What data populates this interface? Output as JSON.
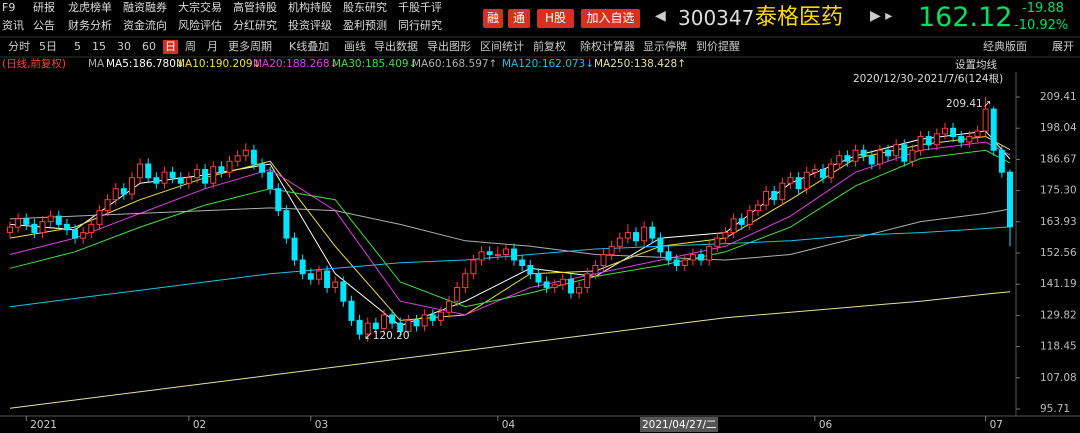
{
  "nav": {
    "row1": [
      "F9",
      "研报",
      "龙虎榜单",
      "融资融券",
      "大宗交易",
      "高管持股",
      "机构持股",
      "股东研究",
      "千股千评"
    ],
    "row2": [
      "资讯",
      "公告",
      "财务分析",
      "资金流向",
      "风险评估",
      "分红研究",
      "投资评级",
      "盈利预测",
      "同行研究"
    ]
  },
  "badges": [
    "融",
    "通",
    "H股",
    "加入自选"
  ],
  "quote": {
    "code": "300347",
    "name": "泰格医药",
    "price": "162.12",
    "change": "-19.88",
    "change_pct": "-10.92%"
  },
  "toolbar": [
    "分时",
    "5日",
    "5",
    "15",
    "30",
    "60",
    "日",
    "周",
    "月",
    "更多周期",
    "K线叠加",
    "画线",
    "导出数据",
    "导出图形",
    "区间统计",
    "前复权",
    "除权计算器",
    "显示停牌",
    "到价提醒"
  ],
  "toolbar_right": [
    "经典版面",
    "展开"
  ],
  "chart_data": {
    "type": "candlestick",
    "subtitle": "(日线,前复权)",
    "ma_label": "MA",
    "settings_label": "设置均线",
    "range_label": "2020/12/30-2021/7/6(124根)",
    "crosshair_label": "2021/04/27/二",
    "up_color": "#ff3c3c",
    "down_color": "#00e5ff",
    "open": [
      160,
      162,
      165,
      163,
      160,
      164,
      166,
      163,
      161,
      158,
      160,
      163,
      168,
      172,
      176,
      174,
      180,
      185,
      180,
      178,
      182,
      180,
      178,
      180,
      183,
      178,
      184,
      182,
      186,
      188,
      190,
      185,
      182,
      176,
      168,
      158,
      150,
      145,
      143,
      146,
      140,
      142,
      135,
      128,
      123,
      127,
      125,
      130,
      127,
      124,
      128,
      126,
      130,
      128,
      131,
      135,
      140,
      145,
      150,
      153,
      152,
      152,
      154,
      150,
      148,
      145,
      142,
      140,
      141,
      143,
      138,
      140,
      145,
      148,
      152,
      155,
      158,
      160,
      157,
      162,
      158,
      153,
      150,
      148,
      150,
      152,
      150,
      155,
      158,
      160,
      165,
      163,
      168,
      170,
      175,
      172,
      178,
      180,
      176,
      182,
      183,
      180,
      185,
      188,
      186,
      190,
      188,
      185,
      190,
      188,
      192,
      186,
      190,
      195,
      192,
      196,
      198,
      195,
      193,
      195,
      197,
      205,
      190,
      182
    ],
    "high": [
      164,
      167,
      167,
      165,
      166,
      168,
      168,
      165,
      163,
      162,
      165,
      170,
      174,
      178,
      178,
      182,
      187,
      187,
      182,
      184,
      184,
      182,
      182,
      185,
      185,
      186,
      186,
      188,
      190,
      192.5,
      192,
      187,
      184,
      178,
      170,
      160,
      152,
      147,
      148,
      148,
      144,
      144,
      137,
      130,
      129,
      129,
      132,
      132,
      129,
      130,
      130,
      132,
      132,
      133,
      137,
      142,
      147,
      152,
      155,
      155,
      155,
      156,
      156,
      152,
      150,
      147,
      144,
      143,
      145,
      145,
      142,
      147,
      150,
      154,
      157,
      160,
      163,
      162,
      164,
      164,
      160,
      155,
      152,
      152,
      154,
      154,
      157,
      160,
      162,
      167,
      167,
      170,
      172,
      177,
      177,
      180,
      182,
      182,
      184,
      185,
      185,
      187,
      190,
      190,
      192,
      192,
      190,
      192,
      192,
      194,
      194,
      192,
      197,
      197,
      198,
      200,
      200,
      197,
      197,
      199,
      209.41,
      206,
      192,
      183
    ],
    "low": [
      158,
      160,
      161,
      158,
      158,
      162,
      161,
      159,
      156,
      156,
      158,
      161,
      166,
      170,
      172,
      172,
      178,
      178,
      176,
      176,
      178,
      176,
      176,
      178,
      176,
      176,
      180,
      180,
      184,
      186,
      183,
      180,
      174,
      166,
      156,
      148,
      143,
      141,
      141,
      138,
      138,
      133,
      126,
      121,
      120.2,
      123,
      123,
      125,
      122,
      122,
      124,
      124,
      126,
      126,
      129,
      133,
      138,
      143,
      148,
      150,
      150,
      150,
      148,
      146,
      143,
      140,
      138,
      138,
      139,
      136,
      136,
      138,
      143,
      146,
      150,
      153,
      156,
      155,
      155,
      156,
      151,
      148,
      146,
      146,
      148,
      148,
      148,
      153,
      156,
      158,
      161,
      161,
      166,
      168,
      170,
      170,
      176,
      174,
      174,
      180,
      178,
      178,
      183,
      184,
      184,
      186,
      183,
      183,
      186,
      186,
      184,
      184,
      188,
      190,
      190,
      194,
      193,
      191,
      191,
      193,
      195,
      188,
      180,
      155
    ],
    "close": [
      162,
      165,
      163,
      160,
      164,
      166,
      163,
      161,
      158,
      160,
      163,
      168,
      172,
      176,
      174,
      180,
      185,
      180,
      178,
      182,
      180,
      178,
      180,
      183,
      178,
      184,
      182,
      186,
      188,
      190,
      185,
      182,
      176,
      168,
      158,
      150,
      145,
      143,
      146,
      140,
      142,
      135,
      128,
      123,
      127,
      125,
      130,
      127,
      124,
      128,
      126,
      130,
      128,
      131,
      135,
      140,
      145,
      150,
      153,
      152,
      152,
      154,
      150,
      148,
      145,
      142,
      140,
      141,
      143,
      138,
      140,
      145,
      148,
      152,
      155,
      158,
      160,
      157,
      162,
      158,
      153,
      150,
      148,
      150,
      152,
      150,
      155,
      158,
      160,
      165,
      163,
      168,
      170,
      175,
      172,
      178,
      180,
      176,
      182,
      183,
      180,
      185,
      188,
      186,
      190,
      188,
      185,
      190,
      188,
      192,
      186,
      190,
      195,
      192,
      196,
      198,
      195,
      193,
      195,
      197,
      205,
      190,
      182,
      162.12
    ],
    "ma_x": [
      0,
      8,
      16,
      24,
      32,
      40,
      48,
      56,
      64,
      72,
      80,
      88,
      96,
      104,
      112,
      120,
      123
    ],
    "series": [
      {
        "name": "MA5:186.780↓",
        "color": "#ffffff",
        "values": [
          163,
          161,
          178,
          181,
          185,
          145,
          126,
          135,
          147,
          144,
          158,
          160,
          178,
          188,
          194,
          197,
          186.78
        ]
      },
      {
        "name": "MA10:190.209↓",
        "color": "#f0e040",
        "values": [
          158,
          162,
          172,
          180,
          186,
          155,
          128,
          130,
          145,
          146,
          155,
          158,
          172,
          187,
          192,
          195,
          190.21
        ]
      },
      {
        "name": "MA20:188.268↓",
        "color": "#e040e0",
        "values": [
          152,
          158,
          167,
          176,
          183,
          168,
          135,
          130,
          140,
          145,
          150,
          155,
          166,
          182,
          190,
          193,
          188.27
        ]
      },
      {
        "name": "MA30:185.409↓",
        "color": "#40e040",
        "values": [
          147,
          153,
          162,
          170,
          176,
          172,
          142,
          133,
          138,
          144,
          148,
          153,
          162,
          177,
          187,
          190,
          185.41
        ]
      },
      {
        "name": "MA60:168.597↑",
        "color": "#b0b0b0",
        "values": [
          165,
          166,
          167,
          168,
          169,
          168,
          163,
          157,
          155,
          152,
          151,
          150,
          152,
          158,
          164,
          167,
          168.6
        ]
      },
      {
        "name": "MA120:162.073↓",
        "color": "#20c0e0",
        "values": [
          133,
          136,
          139,
          142,
          145,
          147,
          149,
          150,
          152,
          154,
          155,
          156,
          157,
          159,
          160,
          161.5,
          162.07
        ]
      },
      {
        "name": "MA250:138.428↑",
        "color": "#e8e0a0",
        "values": [
          96,
          99,
          102,
          105,
          108,
          111,
          114,
          117,
          120,
          123,
          126,
          129,
          131,
          133,
          135,
          137.6,
          138.43
        ]
      }
    ],
    "ylim": [
      95.71,
      209.41
    ],
    "yticks": [
      95.71,
      107.08,
      118.45,
      129.82,
      141.19,
      152.56,
      163.93,
      {
        "value": 175.3,
        "label": "175.30"
      },
      186.67,
      198.04,
      209.41
    ],
    "xticks": [
      {
        "value": 2,
        "label": "2021"
      },
      {
        "value": 22,
        "label": "02"
      },
      {
        "value": 37,
        "label": "03"
      },
      {
        "value": 60,
        "label": "04"
      },
      {
        "value": 99,
        "label": "06"
      },
      {
        "value": 120,
        "label": "07"
      }
    ],
    "annotations": [
      "↙120.20",
      "209.41↗"
    ]
  }
}
